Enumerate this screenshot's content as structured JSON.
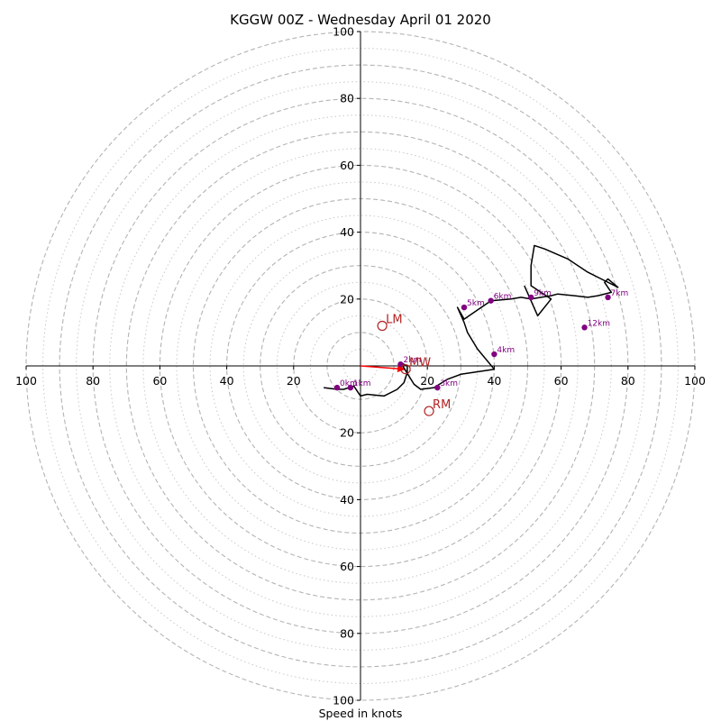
{
  "chart_data": {
    "type": "scatter",
    "title": "KGGW 00Z - Wednesday April 01 2020",
    "xlabel": "Speed in knots",
    "ylabel": "",
    "xlim": [
      -100,
      100
    ],
    "ylim": [
      -100,
      100
    ],
    "grid": {
      "dashed_rings": [
        10,
        20,
        30,
        40,
        50,
        60,
        70,
        80,
        90,
        100
      ],
      "dotted_rings": [
        5,
        15,
        25,
        35,
        45,
        55,
        65,
        75,
        85,
        95
      ]
    },
    "x_ticks": [
      {
        "value": -100,
        "label": "100"
      },
      {
        "value": -80,
        "label": "80"
      },
      {
        "value": -60,
        "label": "60"
      },
      {
        "value": -40,
        "label": "40"
      },
      {
        "value": -20,
        "label": "20"
      },
      {
        "value": 20,
        "label": "20"
      },
      {
        "value": 40,
        "label": "40"
      },
      {
        "value": 60,
        "label": "60"
      },
      {
        "value": 80,
        "label": "80"
      },
      {
        "value": 100,
        "label": "100"
      }
    ],
    "y_ticks": [
      {
        "value": 100,
        "label": "100"
      },
      {
        "value": 80,
        "label": "80"
      },
      {
        "value": 60,
        "label": "60"
      },
      {
        "value": 40,
        "label": "40"
      },
      {
        "value": 20,
        "label": "20"
      },
      {
        "value": -20,
        "label": "20"
      },
      {
        "value": -40,
        "label": "40"
      },
      {
        "value": -60,
        "label": "60"
      },
      {
        "value": -80,
        "label": "80"
      },
      {
        "value": -100,
        "label": "100"
      }
    ],
    "hodograph": {
      "color": "#000000",
      "u": [
        -11,
        -7,
        -5,
        -2,
        0,
        2,
        7,
        11,
        13,
        14,
        14,
        12,
        16,
        18,
        22,
        26,
        30,
        40,
        35,
        32,
        31,
        29,
        31,
        39,
        45,
        48,
        51,
        54,
        57,
        59,
        64,
        68,
        71,
        75,
        73,
        74,
        77,
        72,
        68,
        62,
        55,
        52,
        51,
        51,
        57,
        53,
        49
      ],
      "v": [
        -6.5,
        -7,
        -7,
        -6,
        -9,
        -8.5,
        -9,
        -7,
        -5,
        -2,
        0,
        1,
        -5.5,
        -7,
        -6.5,
        -4,
        -2.5,
        -1,
        5,
        10,
        13,
        17.5,
        14,
        19.5,
        20,
        20.5,
        20,
        20.5,
        21,
        21.5,
        21,
        20.5,
        21,
        22,
        25,
        26,
        23.5,
        26,
        28,
        32,
        35,
        36,
        30,
        24,
        20,
        15,
        24
      ]
    },
    "height_markers": {
      "color": "#800080",
      "points": [
        {
          "label": "0km",
          "u": -7,
          "v": -6.5
        },
        {
          "label": "1km",
          "u": -3,
          "v": -6.5
        },
        {
          "label": "2km",
          "u": 12,
          "v": 0.5
        },
        {
          "label": "3km",
          "u": 23,
          "v": -6.5
        },
        {
          "label": "4km",
          "u": 40,
          "v": 3.5
        },
        {
          "label": "5km",
          "u": 31,
          "v": 17.5
        },
        {
          "label": "6km",
          "u": 39,
          "v": 19.5
        },
        {
          "label": "9km",
          "u": 51,
          "v": 20.5
        },
        {
          "label": "7km",
          "u": 74,
          "v": 20.5
        },
        {
          "label": "12km",
          "u": 67,
          "v": 11.5
        }
      ]
    },
    "motion_markers": {
      "color": "#b22222",
      "points": [
        {
          "label": "LM",
          "u": 6.5,
          "v": 12
        },
        {
          "label": "RM",
          "u": 20.5,
          "v": -13.5
        },
        {
          "label": "MW",
          "u": 13.5,
          "v": -1
        }
      ]
    },
    "shear_vector": {
      "color": "#ff0000",
      "u_end": 13.5,
      "v_end": -1
    }
  }
}
